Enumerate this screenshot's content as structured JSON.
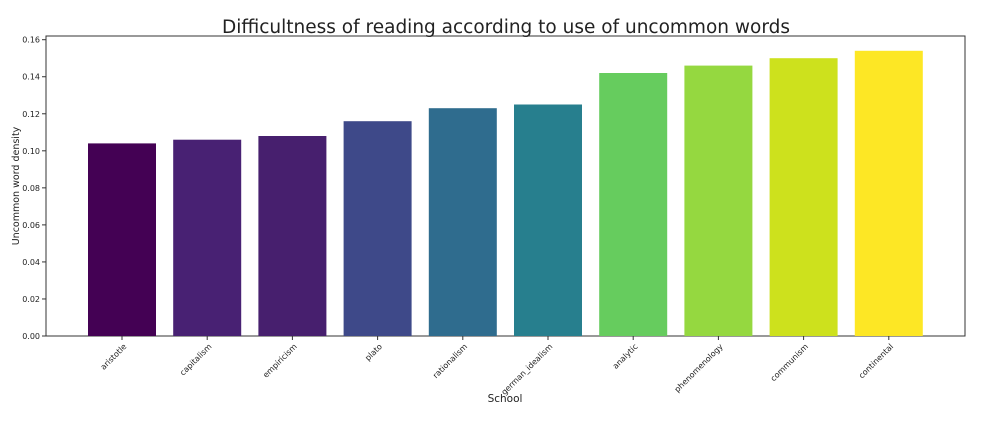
{
  "chart_data": {
    "type": "bar",
    "title": "Difficultness of reading according to use of uncommon words",
    "xlabel": "School",
    "ylabel": "Uncommon word density",
    "categories": [
      "aristotle",
      "capitalism",
      "empiricism",
      "plato",
      "rationalism",
      "german_idealism",
      "analytic",
      "phenomenology",
      "communism",
      "continental"
    ],
    "values": [
      0.104,
      0.106,
      0.108,
      0.116,
      0.123,
      0.125,
      0.142,
      0.146,
      0.15,
      0.154
    ],
    "colors": [
      "#440154",
      "#482173",
      "#471f6e",
      "#3e4989",
      "#2f6c8e",
      "#277f8e",
      "#66cc5e",
      "#95d840",
      "#cde11d",
      "#fde725"
    ],
    "ylim": [
      0,
      0.162
    ],
    "yticks": [
      "0.00",
      "0.02",
      "0.04",
      "0.06",
      "0.08",
      "0.10",
      "0.12",
      "0.14",
      "0.16"
    ],
    "grid": false,
    "legend": "none"
  }
}
